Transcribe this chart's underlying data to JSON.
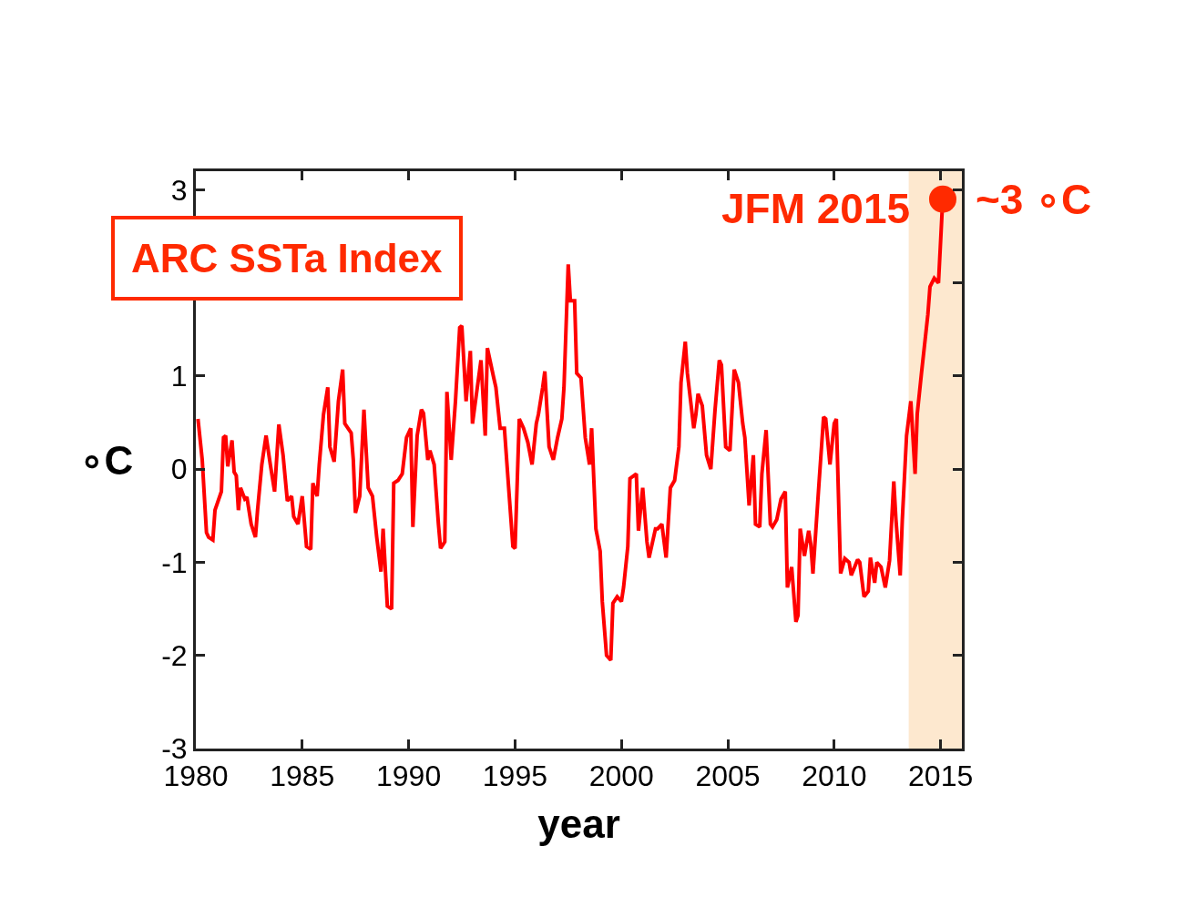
{
  "chart_data": {
    "type": "line",
    "xlabel": "year",
    "ylabel": "∘C",
    "annotations": [
      "ARC SSTa Index",
      {
        "text": "JFM 2015",
        "x": 2015.1,
        "y": 2.9
      },
      {
        "text": "~3 ∘C",
        "x": 2015.1,
        "y": 2.9
      }
    ],
    "xlim": [
      1980,
      2016
    ],
    "xticks": [
      1980,
      1985,
      1990,
      1995,
      2000,
      2005,
      2010,
      2015
    ],
    "ylim": [
      -3,
      3.2
    ],
    "yticks": [
      -3,
      -2,
      -1,
      0,
      1,
      {
        "value": 2,
        "label": null
      },
      3
    ],
    "grid": false,
    "line_style": "solid",
    "marker": "none",
    "bands": [
      {
        "axis": "x",
        "from": 2013.5,
        "to": 2016,
        "color": "#fde8cf"
      }
    ],
    "series": [
      {
        "color": "#ff0000",
        "x": [
          1980.1,
          1980.3,
          1980.5,
          1980.6,
          1980.8,
          1980.9,
          1981.2,
          1981.3,
          1981.4,
          1981.5,
          1981.7,
          1981.8,
          1981.9,
          1982.0,
          1982.1,
          1982.3,
          1982.4,
          1982.6,
          1982.8,
          1982.9,
          1983.1,
          1983.3,
          1983.5,
          1983.7,
          1983.9,
          1984.1,
          1984.3,
          1984.5,
          1984.6,
          1984.8,
          1985.0,
          1985.2,
          1985.4,
          1985.5,
          1985.7,
          1985.8,
          1986.0,
          1986.2,
          1986.3,
          1986.5,
          1986.7,
          1986.9,
          1987.0,
          1987.3,
          1987.4,
          1987.5,
          1987.7,
          1987.9,
          1988.1,
          1988.3,
          1988.5,
          1988.7,
          1988.8,
          1989.0,
          1989.2,
          1989.3,
          1989.5,
          1989.7,
          1989.9,
          1990.1,
          1990.2,
          1990.4,
          1990.6,
          1990.7,
          1990.9,
          1991.0,
          1991.2,
          1991.4,
          1991.5,
          1991.7,
          1991.8,
          1992.0,
          1992.2,
          1992.4,
          1992.5,
          1992.7,
          1992.9,
          1993.0,
          1993.2,
          1993.4,
          1993.6,
          1993.7,
          1994.0,
          1994.1,
          1994.3,
          1994.5,
          1994.7,
          1994.9,
          1995.0,
          1995.2,
          1995.4,
          1995.6,
          1995.8,
          1996.0,
          1996.1,
          1996.3,
          1996.4,
          1996.6,
          1996.8,
          1997.0,
          1997.2,
          1997.3,
          1997.5,
          1997.6,
          1997.8,
          1997.9,
          1998.1,
          1998.3,
          1998.5,
          1998.6,
          1998.8,
          1999.0,
          1999.1,
          1999.3,
          1999.5,
          1999.6,
          1999.8,
          2000.0,
          2000.1,
          2000.3,
          2000.4,
          2000.7,
          2000.8,
          2001.0,
          2001.2,
          2001.3,
          2001.6,
          2001.7,
          2001.9,
          2002.1,
          2002.3,
          2002.5,
          2002.7,
          2002.8,
          2003.0,
          2003.1,
          2003.4,
          2003.5,
          2003.6,
          2003.8,
          2004.0,
          2004.2,
          2004.4,
          2004.6,
          2004.7,
          2004.9,
          2005.1,
          2005.3,
          2005.5,
          2005.7,
          2005.8,
          2006.0,
          2006.2,
          2006.3,
          2006.5,
          2006.6,
          2006.8,
          2007.0,
          2007.1,
          2007.3,
          2007.5,
          2007.7,
          2007.8,
          2008.0,
          2008.2,
          2008.3,
          2008.4,
          2008.6,
          2008.8,
          2008.9,
          2009.0,
          2009.3,
          2009.5,
          2009.6,
          2009.8,
          2010.0,
          2010.1,
          2010.3,
          2010.5,
          2010.7,
          2010.8,
          2011.1,
          2011.2,
          2011.4,
          2011.6,
          2011.7,
          2011.9,
          2012.0,
          2012.2,
          2012.4,
          2012.6,
          2012.8,
          2012.9,
          2013.1,
          2013.2,
          2013.4,
          2013.6,
          2013.8,
          2013.9,
          2014.1,
          2014.4,
          2014.5,
          2014.7,
          2014.9,
          2015.1
        ],
        "values": [
          0.54,
          0.1,
          -0.68,
          -0.73,
          -0.76,
          -0.44,
          -0.24,
          0.34,
          0.36,
          0.03,
          0.31,
          -0.03,
          -0.07,
          -0.44,
          -0.2,
          -0.32,
          -0.3,
          -0.59,
          -0.73,
          -0.44,
          0.05,
          0.36,
          0.05,
          -0.24,
          0.48,
          0.15,
          -0.34,
          -0.29,
          -0.51,
          -0.59,
          -0.29,
          -0.83,
          -0.86,
          -0.15,
          -0.29,
          0.05,
          0.59,
          0.88,
          0.24,
          0.08,
          0.73,
          1.07,
          0.49,
          0.39,
          0.1,
          -0.47,
          -0.29,
          0.64,
          -0.2,
          -0.29,
          -0.73,
          -1.1,
          -0.64,
          -1.47,
          -1.5,
          -0.15,
          -0.12,
          -0.05,
          0.34,
          0.44,
          -0.62,
          0.36,
          0.64,
          0.6,
          0.1,
          0.2,
          0.05,
          -0.59,
          -0.85,
          -0.78,
          0.83,
          0.1,
          0.73,
          1.52,
          1.54,
          0.73,
          1.27,
          0.49,
          0.83,
          1.17,
          0.36,
          1.3,
          0.98,
          0.88,
          0.44,
          0.44,
          -0.2,
          -0.83,
          -0.85,
          0.54,
          0.44,
          0.29,
          0.05,
          0.49,
          0.59,
          0.88,
          1.05,
          0.24,
          0.1,
          0.34,
          0.54,
          0.88,
          2.2,
          1.81,
          1.81,
          1.03,
          0.98,
          0.34,
          0.05,
          0.44,
          -0.64,
          -0.88,
          -1.42,
          -2.0,
          -2.05,
          -1.44,
          -1.37,
          -1.42,
          -1.27,
          -0.83,
          -0.1,
          -0.05,
          -0.66,
          -0.2,
          -0.78,
          -0.95,
          -0.64,
          -0.64,
          -0.59,
          -0.95,
          -0.2,
          -0.12,
          0.24,
          0.93,
          1.37,
          1.03,
          0.44,
          0.59,
          0.81,
          0.68,
          0.15,
          0.0,
          0.64,
          1.17,
          1.12,
          0.24,
          0.2,
          1.07,
          0.93,
          0.49,
          0.34,
          -0.39,
          0.15,
          -0.59,
          -0.62,
          -0.05,
          0.42,
          -0.59,
          -0.62,
          -0.54,
          -0.32,
          -0.24,
          -1.27,
          -1.05,
          -1.64,
          -1.57,
          -0.64,
          -0.93,
          -0.66,
          -0.81,
          -1.12,
          -0.1,
          0.56,
          0.54,
          0.05,
          0.49,
          0.54,
          -1.12,
          -0.96,
          -1.0,
          -1.14,
          -0.97,
          -1.0,
          -1.37,
          -1.31,
          -0.95,
          -1.22,
          -1.0,
          -1.05,
          -1.27,
          -0.98,
          -0.13,
          -0.54,
          -1.14,
          -0.54,
          0.36,
          0.73,
          -0.05,
          0.59,
          1.03,
          1.66,
          1.96,
          2.05,
          2.0,
          2.9
        ]
      },
      {
        "type": "scatter",
        "marker": "circle",
        "color": "#ff2a00",
        "x": [
          2015.1
        ],
        "values": [
          2.9
        ]
      }
    ]
  }
}
